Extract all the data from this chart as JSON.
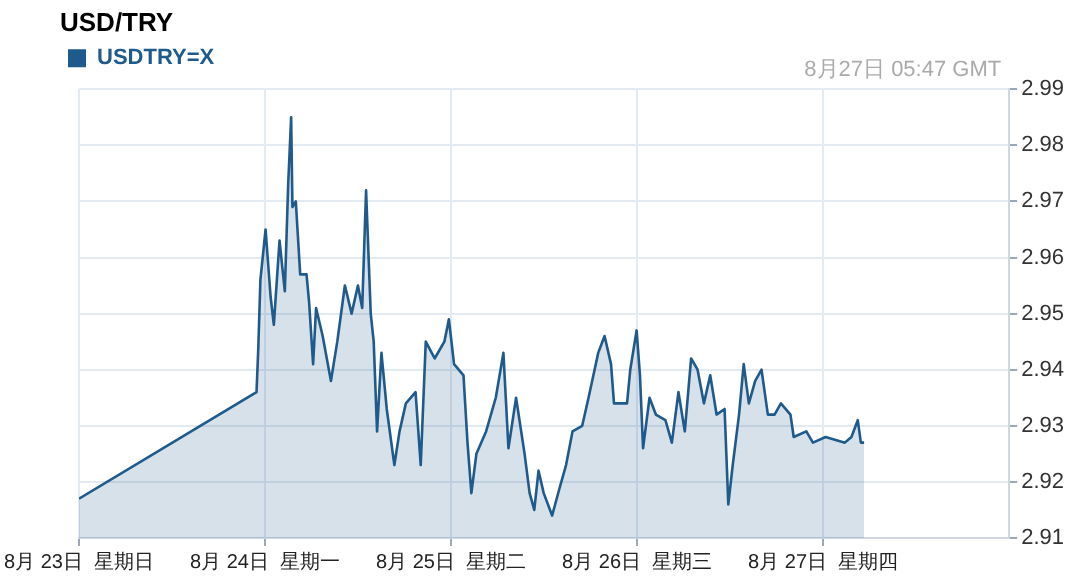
{
  "chart_data": {
    "type": "area",
    "title": "USD/TRY",
    "annotations": [
      "8月27日 05:47 GMT"
    ],
    "legend": "top left",
    "grid": true,
    "series": [
      {
        "name": "USDTRY=X",
        "color": "#1f5a8c",
        "x": [
          "--08-23T00:00",
          "--08-23T22:54",
          "--08-23T23:08",
          "--08-23T23:24",
          "--08-24T00:04",
          "--08-24T00:43",
          "--08-24T01:08",
          "--08-24T01:52",
          "--08-24T02:33",
          "--08-24T02:59",
          "--08-24T03:22",
          "--08-24T03:32",
          "--08-24T03:58",
          "--08-24T04:32",
          "--08-24T05:21",
          "--08-24T05:41",
          "--08-24T06:12",
          "--08-24T06:35",
          "--08-24T07:26",
          "--08-24T08:30",
          "--08-24T09:19",
          "--08-24T10:18",
          "--08-24T11:10",
          "--08-24T11:59",
          "--08-24T12:32",
          "--08-24T13:02",
          "--08-24T13:38",
          "--08-24T14:01",
          "--08-24T14:27",
          "--08-24T15:01",
          "--08-24T15:42",
          "--08-24T16:41",
          "--08-24T17:21",
          "--08-24T18:10",
          "--08-24T19:25",
          "--08-24T20:05",
          "--08-24T20:44",
          "--08-24T21:53",
          "--08-24T23:08",
          "--08-24T23:43",
          "--08-25T00:23",
          "--08-25T01:36",
          "--08-25T02:07",
          "--08-25T02:37",
          "--08-25T03:16",
          "--08-25T04:31",
          "--08-25T05:46",
          "--08-25T06:45",
          "--08-25T07:24",
          "--08-25T08:23",
          "--08-25T09:29",
          "--08-25T10:08",
          "--08-25T10:44",
          "--08-25T11:17",
          "--08-25T11:57",
          "--08-25T13:02",
          "--08-25T14:01",
          "--08-25T14:50",
          "--08-25T15:40",
          "--08-25T16:55",
          "--08-25T17:44",
          "--08-25T18:59",
          "--08-25T19:48",
          "--08-25T20:38",
          "--08-25T21:01",
          "--08-25T22:42",
          "--08-25T23:07",
          "--08-25T23:56",
          "--08-26T00:22",
          "--08-26T00:46",
          "--08-26T01:36",
          "--08-26T02:25",
          "--08-26T03:39",
          "--08-26T04:29",
          "--08-26T05:20",
          "--08-26T06:09",
          "--08-26T06:58",
          "--08-26T07:48",
          "--08-26T08:37",
          "--08-26T09:26",
          "--08-26T10:15",
          "--08-26T11:17",
          "--08-26T11:46",
          "--08-26T12:20",
          "--08-26T13:09",
          "--08-26T13:45",
          "--08-26T14:25",
          "--08-26T15:14",
          "--08-26T16:03",
          "--08-26T16:52",
          "--08-26T17:44",
          "--08-26T18:33",
          "--08-26T19:47",
          "--08-26T20:12",
          "--08-26T21:50",
          "--08-26T22:41",
          "--08-27T00:19",
          "--08-27T02:48",
          "--08-27T03:39",
          "--08-27T04:28",
          "--08-27T04:52",
          "--08-27T05:17"
        ],
        "values": [
          2.917,
          2.936,
          2.944,
          2.956,
          2.965,
          2.953,
          2.948,
          2.963,
          2.954,
          2.973,
          2.985,
          2.969,
          2.97,
          2.957,
          2.957,
          2.952,
          2.941,
          2.951,
          2.946,
          2.938,
          2.945,
          2.955,
          2.95,
          2.955,
          2.951,
          2.972,
          2.95,
          2.945,
          2.929,
          2.943,
          2.933,
          2.923,
          2.929,
          2.934,
          2.936,
          2.923,
          2.945,
          2.942,
          2.945,
          2.949,
          2.941,
          2.939,
          2.927,
          2.918,
          2.925,
          2.929,
          2.935,
          2.943,
          2.926,
          2.935,
          2.925,
          2.918,
          2.915,
          2.922,
          2.918,
          2.914,
          2.919,
          2.923,
          2.929,
          2.93,
          2.935,
          2.943,
          2.946,
          2.941,
          2.934,
          2.934,
          2.94,
          2.947,
          2.939,
          2.926,
          2.935,
          2.932,
          2.931,
          2.927,
          2.936,
          2.929,
          2.942,
          2.94,
          2.934,
          2.939,
          2.932,
          2.933,
          2.916,
          2.923,
          2.932,
          2.941,
          2.934,
          2.938,
          2.94,
          2.932,
          2.932,
          2.934,
          2.932,
          2.928,
          2.929,
          2.927,
          2.928,
          2.927,
          2.928,
          2.931,
          2.927,
          2.927
        ]
      }
    ],
    "xlim": [
      "--08-23",
      "--08-28"
    ],
    "xticks": [
      {
        "value": "--08-23",
        "label": "8月 23日  星期日"
      },
      {
        "value": "--08-24",
        "label": "8月 24日  星期一"
      },
      {
        "value": "--08-25",
        "label": "8月 25日  星期二"
      },
      {
        "value": "--08-26",
        "label": "8月 26日  星期三"
      },
      {
        "value": "--08-27",
        "label": "8月 27日  星期四"
      }
    ],
    "ylim": [
      2.91,
      2.99
    ],
    "yticks": [
      2.91,
      2.92,
      2.93,
      2.94,
      2.95,
      2.96,
      2.97,
      2.98,
      2.99
    ]
  }
}
